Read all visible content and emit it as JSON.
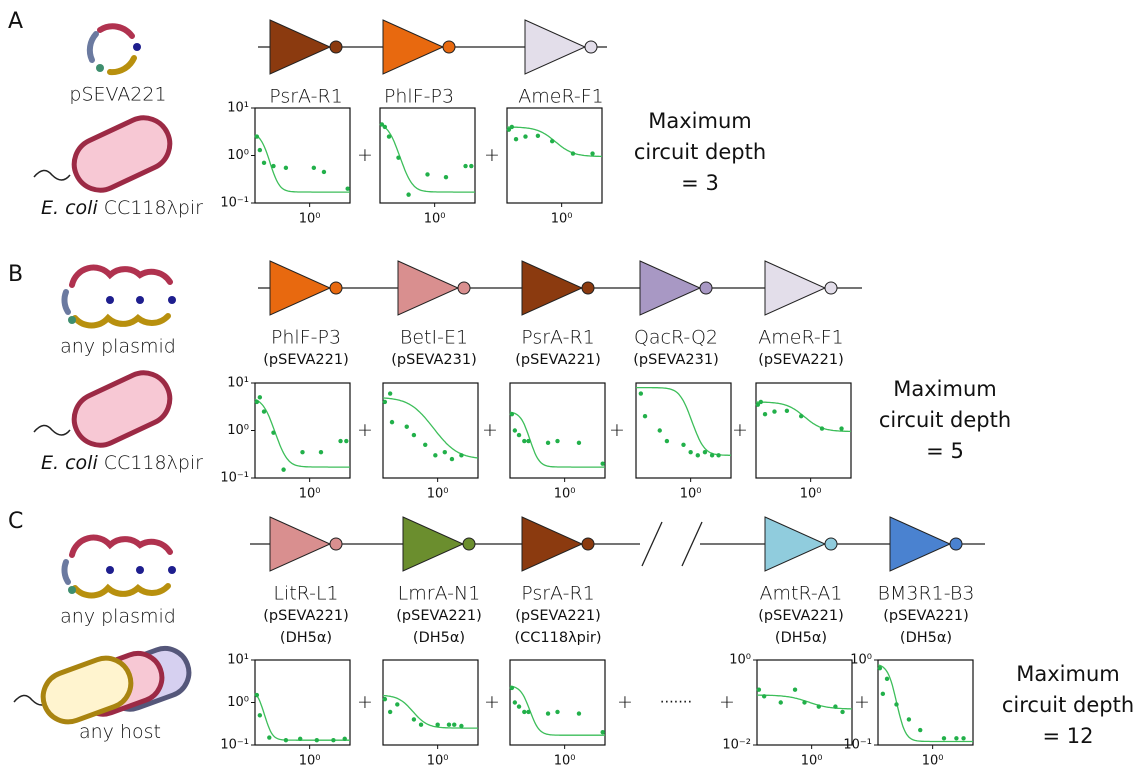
{
  "plus": "+",
  "ellipsis": "·······",
  "panels": [
    {
      "letter": "A",
      "plasmid": "pSEVA221",
      "host_italic": "E. coli",
      "host": "CC118λpir",
      "depth": {
        "line1": "Maximum",
        "line2": "circuit depth",
        "line3": "= 3"
      },
      "gates": [
        {
          "name": "PsrA-R1",
          "color": "#8B3A0F"
        },
        {
          "name": "PhlF-P3",
          "color": "#E8690F"
        },
        {
          "name": "AmeR-F1",
          "color": "#E3DEEA"
        }
      ],
      "plots": [
        {
          "xlim": [
            0.005,
            50
          ],
          "ylim": [
            0.1,
            10
          ],
          "xticks": [
            {
              "value": 1,
              "label": "10⁰"
            }
          ],
          "yticks": [
            {
              "value": 10,
              "label": "10¹"
            },
            {
              "value": 1,
              "label": "10⁰"
            },
            {
              "value": 0.1,
              "label": "10⁻¹"
            }
          ],
          "x": [
            0.006,
            0.008,
            0.012,
            0.03,
            0.1,
            1.5,
            4,
            40
          ],
          "y": [
            2.5,
            1.3,
            0.7,
            0.6,
            0.55,
            0.55,
            0.45,
            0.2
          ],
          "fit": {
            "ymax": 3,
            "ymin": 0.17,
            "K": 0.012,
            "n": 2.5
          }
        },
        {
          "xlim": [
            0.005,
            50
          ],
          "ylim": [
            0.1,
            10
          ],
          "xticks": [
            {
              "value": 1,
              "label": "10⁰"
            }
          ],
          "yticks": [],
          "x": [
            0.006,
            0.008,
            0.012,
            0.03,
            0.08,
            0.5,
            3,
            20,
            35
          ],
          "y": [
            4.5,
            4,
            2.5,
            0.9,
            0.15,
            0.4,
            0.35,
            0.6,
            0.6
          ],
          "fit": {
            "ymax": 5,
            "ymin": 0.17,
            "K": 0.015,
            "n": 2
          }
        },
        {
          "xlim": [
            0.005,
            50
          ],
          "ylim": [
            0.1,
            10
          ],
          "xticks": [
            {
              "value": 1,
              "label": "10⁰"
            }
          ],
          "yticks": [],
          "x": [
            0.006,
            0.008,
            0.012,
            0.03,
            0.1,
            0.4,
            3,
            20
          ],
          "y": [
            3.5,
            4,
            2.2,
            2.5,
            2.6,
            2.0,
            1.1,
            1.1
          ],
          "fit": {
            "ymax": 4,
            "ymin": 0.95,
            "K": 0.3,
            "n": 1.2
          }
        }
      ]
    },
    {
      "letter": "B",
      "plasmid": "any plasmid",
      "host_italic": "E. coli",
      "host": "CC118λpir",
      "depth": {
        "line1": "Maximum",
        "line2": "circuit depth",
        "line3": "= 5"
      },
      "gates": [
        {
          "name": "PhlF-P3",
          "plasmid": "(pSEVA221)",
          "color": "#E8690F"
        },
        {
          "name": "BetI-E1",
          "plasmid": "(pSEVA231)",
          "color": "#D98F8F"
        },
        {
          "name": "PsrA-R1",
          "plasmid": "(pSEVA221)",
          "color": "#8B3A0F"
        },
        {
          "name": "QacR-Q2",
          "plasmid": "(pSEVA231)",
          "color": "#A898C4"
        },
        {
          "name": "AmeR-F1",
          "plasmid": "(pSEVA221)",
          "color": "#E3DEEA"
        }
      ],
      "plots": [
        {
          "xlim": [
            0.005,
            50
          ],
          "ylim": [
            0.1,
            10
          ],
          "xticks": [
            {
              "value": 1,
              "label": "10⁰"
            }
          ],
          "yticks": [
            {
              "value": 10,
              "label": "10¹"
            },
            {
              "value": 1,
              "label": "10⁰"
            },
            {
              "value": 0.1,
              "label": "10⁻¹"
            }
          ],
          "x": [
            0.006,
            0.008,
            0.012,
            0.03,
            0.08,
            0.5,
            3,
            20,
            35
          ],
          "y": [
            4,
            5,
            2.5,
            0.9,
            0.15,
            0.35,
            0.35,
            0.6,
            0.6
          ],
          "fit": {
            "ymax": 5,
            "ymin": 0.17,
            "K": 0.015,
            "n": 2
          }
        },
        {
          "xlim": [
            0.005,
            50
          ],
          "ylim": [
            0.1,
            10
          ],
          "xticks": [
            {
              "value": 1,
              "label": "10⁰"
            }
          ],
          "yticks": [],
          "x": [
            0.006,
            0.01,
            0.012,
            0.05,
            0.1,
            0.3,
            0.8,
            2,
            4,
            10
          ],
          "y": [
            4,
            6,
            1.5,
            1.2,
            0.8,
            0.5,
            0.3,
            0.35,
            0.25,
            0.3
          ],
          "fit": {
            "ymax": 5,
            "ymin": 0.25,
            "K": 0.15,
            "n": 1
          }
        },
        {
          "xlim": [
            0.005,
            50
          ],
          "ylim": [
            0.1,
            10
          ],
          "xticks": [
            {
              "value": 1,
              "label": "10⁰"
            }
          ],
          "yticks": [],
          "x": [
            0.006,
            0.008,
            0.012,
            0.02,
            0.03,
            0.2,
            0.5,
            4,
            40
          ],
          "y": [
            2.2,
            1,
            0.8,
            0.6,
            0.6,
            0.55,
            0.6,
            0.55,
            0.2
          ],
          "fit": {
            "ymax": 2.5,
            "ymin": 0.17,
            "K": 0.02,
            "n": 2.5
          }
        },
        {
          "xlim": [
            0.005,
            50
          ],
          "ylim": [
            0.1,
            10
          ],
          "xticks": [
            {
              "value": 1,
              "label": "10⁰"
            }
          ],
          "yticks": [],
          "x": [
            0.008,
            0.012,
            0.05,
            0.1,
            0.5,
            1,
            2,
            4,
            8,
            15
          ],
          "y": [
            6,
            2,
            1,
            0.6,
            0.5,
            0.35,
            0.3,
            0.35,
            0.3,
            0.3
          ],
          "fit": {
            "ymax": 8,
            "ymin": 0.3,
            "K": 0.5,
            "n": 2
          }
        },
        {
          "xlim": [
            0.005,
            50
          ],
          "ylim": [
            0.1,
            10
          ],
          "xticks": [
            {
              "value": 1,
              "label": "10⁰"
            }
          ],
          "yticks": [],
          "x": [
            0.006,
            0.008,
            0.012,
            0.03,
            0.1,
            0.4,
            3,
            20
          ],
          "y": [
            3.5,
            4,
            2.2,
            2.5,
            2.6,
            2.0,
            1.1,
            1.1
          ],
          "fit": {
            "ymax": 4,
            "ymin": 0.95,
            "K": 0.3,
            "n": 1.2
          }
        }
      ]
    },
    {
      "letter": "C",
      "plasmid": "any plasmid",
      "host": "any host",
      "depth": {
        "line1": "Maximum",
        "line2": "circuit depth",
        "line3": "= 12"
      },
      "gates": [
        {
          "name": "LitR-L1",
          "plasmid": "(pSEVA221)",
          "host": "(DH5α)",
          "color": "#D98F8F"
        },
        {
          "name": "LmrA-N1",
          "plasmid": "(pSEVA221)",
          "host": "(DH5α)",
          "color": "#6B8E2E"
        },
        {
          "name": "PsrA-R1",
          "plasmid": "(pSEVA221)",
          "host": "(CC118λpir)",
          "color": "#8B3A0F"
        },
        {
          "name": "AmtR-A1",
          "plasmid": "(pSEVA221)",
          "host": "(DH5α)",
          "color": "#90CCDD"
        },
        {
          "name": "BM3R1-B3",
          "plasmid": "(pSEVA221)",
          "host": "(DH5α)",
          "color": "#4A82D0"
        }
      ],
      "plots": [
        {
          "xlim": [
            0.005,
            50
          ],
          "ylim": [
            0.1,
            10
          ],
          "xticks": [
            {
              "value": 1,
              "label": "10⁰"
            }
          ],
          "yticks": [
            {
              "value": 10,
              "label": "10¹"
            },
            {
              "value": 1,
              "label": "10⁰"
            },
            {
              "value": 0.1,
              "label": "10⁻¹"
            }
          ],
          "x": [
            0.006,
            0.008,
            0.02,
            0.1,
            0.4,
            2,
            10,
            30
          ],
          "y": [
            1.5,
            0.5,
            0.15,
            0.13,
            0.14,
            0.13,
            0.13,
            0.14
          ],
          "fit": {
            "ymax": 2,
            "ymin": 0.13,
            "K": 0.008,
            "n": 3
          }
        },
        {
          "xlim": [
            0.005,
            50
          ],
          "ylim": [
            0.1,
            10
          ],
          "xticks": [
            {
              "value": 1,
              "label": "10⁰"
            }
          ],
          "yticks": [],
          "x": [
            0.006,
            0.01,
            0.02,
            0.1,
            0.2,
            1,
            3,
            5,
            10
          ],
          "y": [
            1.2,
            0.6,
            0.9,
            0.4,
            0.3,
            0.3,
            0.3,
            0.3,
            0.28
          ],
          "fit": {
            "ymax": 1.5,
            "ymin": 0.25,
            "K": 0.05,
            "n": 1.5
          }
        },
        {
          "xlim": [
            0.005,
            50
          ],
          "ylim": [
            0.1,
            10
          ],
          "xticks": [
            {
              "value": 1,
              "label": "10⁰"
            }
          ],
          "yticks": [],
          "x": [
            0.006,
            0.008,
            0.012,
            0.02,
            0.03,
            0.2,
            0.5,
            4,
            40
          ],
          "y": [
            2.2,
            1,
            0.8,
            0.6,
            0.6,
            0.55,
            0.6,
            0.55,
            0.2
          ],
          "fit": {
            "ymax": 2.5,
            "ymin": 0.17,
            "K": 0.02,
            "n": 2.5
          }
        },
        {
          "xlim": [
            0.005,
            50
          ],
          "ylim": [
            0.01,
            1
          ],
          "xticks": [
            {
              "value": 1,
              "label": "10⁰"
            }
          ],
          "yticks": [
            {
              "value": 1,
              "label": "10⁰"
            },
            {
              "value": 0.01,
              "label": "10⁻²"
            }
          ],
          "x": [
            0.006,
            0.01,
            0.05,
            0.2,
            0.5,
            2,
            10,
            20
          ],
          "y": [
            0.2,
            0.14,
            0.1,
            0.2,
            0.1,
            0.08,
            0.08,
            0.06
          ],
          "fit": {
            "ymax": 0.15,
            "ymin": 0.07,
            "K": 0.5,
            "n": 1
          }
        },
        {
          "xlim": [
            0.005,
            50
          ],
          "ylim": [
            0.1,
            1
          ],
          "xticks": [
            {
              "value": 1,
              "label": "10⁰"
            }
          ],
          "yticks": [
            {
              "value": 1,
              "label": "10⁰"
            },
            {
              "value": 0.1,
              "label": "10⁻¹"
            }
          ],
          "x": [
            0.006,
            0.008,
            0.012,
            0.03,
            0.1,
            0.3,
            3,
            10,
            20
          ],
          "y": [
            0.8,
            0.4,
            0.6,
            0.3,
            0.2,
            0.15,
            0.12,
            0.12,
            0.12
          ],
          "fit": {
            "ymax": 0.9,
            "ymin": 0.11,
            "K": 0.02,
            "n": 2.5
          }
        }
      ]
    }
  ]
}
